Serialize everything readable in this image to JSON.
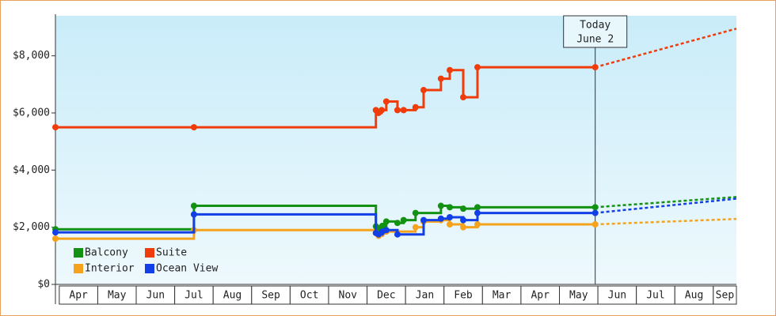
{
  "chart_data": {
    "type": "step-line",
    "categories": [
      "Apr",
      "May",
      "Jun",
      "Jul",
      "Aug",
      "Sep",
      "Oct",
      "Nov",
      "Dec",
      "Jan",
      "Feb",
      "Mar",
      "Apr",
      "May",
      "Jun",
      "Jul",
      "Aug",
      "Sep"
    ],
    "xlim": [
      -0.1,
      17.6
    ],
    "ylim": [
      0,
      9400
    ],
    "yticks": [
      {
        "value": 0,
        "label": "$0"
      },
      {
        "value": 2000,
        "label": "$2,000"
      },
      {
        "value": 4000,
        "label": "$4,000"
      },
      {
        "value": 6000,
        "label": "$6,000"
      },
      {
        "value": 8000,
        "label": "$8,000"
      }
    ],
    "annotation": {
      "lines": [
        "Today",
        "June 2"
      ],
      "x": 13.93
    },
    "series": [
      {
        "name": "Balcony",
        "color": "#129112",
        "x": [
          -0.1,
          3.5,
          8.23,
          8.3,
          8.4,
          8.5,
          8.79,
          8.95,
          9.26,
          9.92,
          10.15,
          10.5,
          10.87,
          13.93
        ],
        "values": [
          1930,
          2750,
          2030,
          1950,
          2050,
          2200,
          2150,
          2250,
          2500,
          2750,
          2700,
          2650,
          2700,
          2700
        ],
        "forecast_x": [
          13.93,
          17.6
        ],
        "forecast": [
          2700,
          3060
        ]
      },
      {
        "name": "Suite",
        "color": "#f03c0a",
        "x": [
          -0.1,
          3.5,
          8.23,
          8.3,
          8.38,
          8.5,
          8.79,
          8.95,
          9.26,
          9.47,
          9.92,
          10.15,
          10.5,
          10.87,
          13.93
        ],
        "values": [
          5500,
          5500,
          6100,
          6000,
          6100,
          6400,
          6100,
          6100,
          6200,
          6800,
          7200,
          7500,
          6550,
          7600,
          7600
        ],
        "forecast_x": [
          13.93,
          17.6
        ],
        "forecast": [
          7600,
          8950
        ]
      },
      {
        "name": "Interior",
        "color": "#f5a21c",
        "x": [
          -0.1,
          3.5,
          8.23,
          8.3,
          8.4,
          8.5,
          9.26,
          9.47,
          9.92,
          10.15,
          10.5,
          10.87,
          13.93
        ],
        "values": [
          1600,
          1900,
          1800,
          1700,
          1800,
          1850,
          2000,
          2200,
          2250,
          2100,
          2000,
          2100,
          2100
        ],
        "forecast_x": [
          13.93,
          17.6
        ],
        "forecast": [
          2100,
          2290
        ]
      },
      {
        "name": "Ocean View",
        "color": "#1240e6",
        "x": [
          -0.1,
          3.5,
          8.23,
          8.3,
          8.4,
          8.5,
          8.79,
          9.47,
          9.92,
          10.15,
          10.5,
          10.87,
          13.93
        ],
        "values": [
          1820,
          2450,
          1800,
          1750,
          1850,
          1900,
          1750,
          2250,
          2300,
          2350,
          2250,
          2500,
          2500
        ],
        "forecast_x": [
          13.93,
          17.6
        ],
        "forecast": [
          2500,
          3000
        ]
      }
    ]
  }
}
